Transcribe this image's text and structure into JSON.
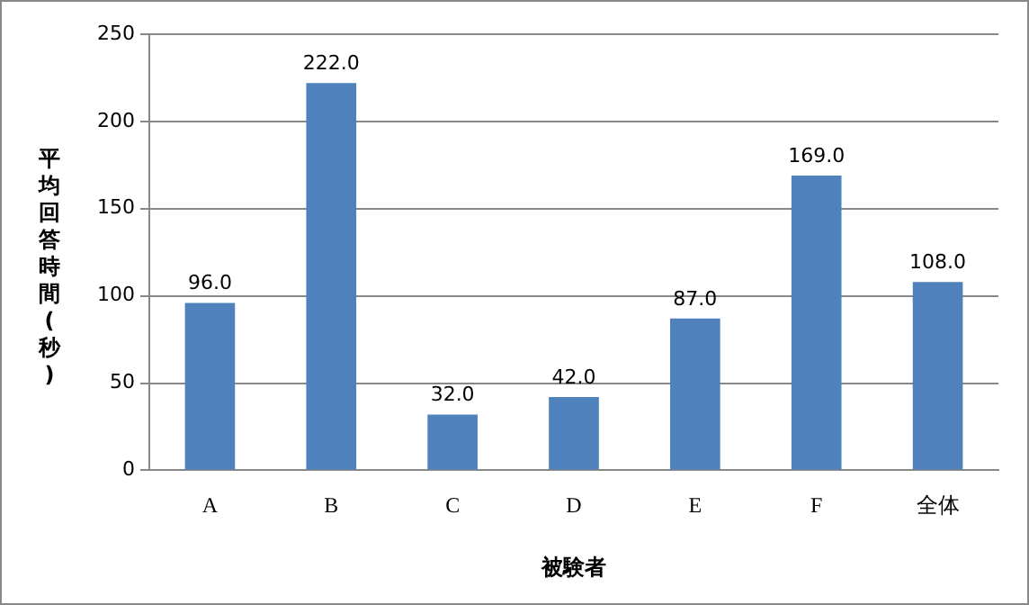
{
  "chart_data": {
    "type": "bar",
    "xlabel": "被験者",
    "ylabel": "平均回答時間(秒)",
    "categories": [
      "A",
      "B",
      "C",
      "D",
      "E",
      "F",
      "全体"
    ],
    "values": [
      96,
      222,
      32,
      42,
      87,
      169,
      108
    ],
    "value_labels": [
      "96.0",
      "222.0",
      "32.0",
      "42.0",
      "87.0",
      "169.0",
      "108.0"
    ],
    "color": "#4f81bd",
    "ylim": [
      0,
      250
    ],
    "yticks": [
      0,
      50,
      100,
      150,
      200,
      250
    ],
    "grid": "y",
    "legend": false
  }
}
